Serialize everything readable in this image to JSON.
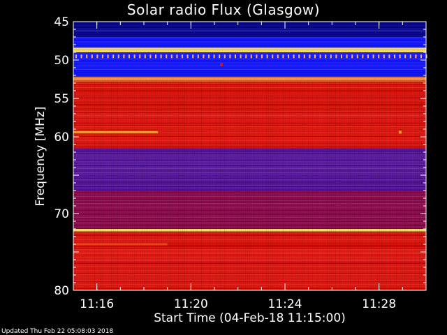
{
  "chart_data": {
    "type": "heatmap",
    "title": "Solar radio Flux (Glasgow)",
    "xlabel": "Start Time (04-Feb-18 11:15:00)",
    "ylabel": "Frequency [MHz]",
    "x_unit": "minutes past 11:00",
    "xlim": [
      15,
      30
    ],
    "x_ticks": [
      {
        "value": 16,
        "label": "11:16"
      },
      {
        "value": 20,
        "label": "11:20"
      },
      {
        "value": 24,
        "label": "11:24"
      },
      {
        "value": 28,
        "label": "11:28"
      }
    ],
    "ylim": [
      45,
      80
    ],
    "y_inverted": true,
    "y_ticks": [
      45,
      50,
      55,
      60,
      65,
      70,
      75,
      80
    ],
    "y_tick_labels": [
      "45",
      "50",
      "55",
      "60",
      "",
      "70",
      "",
      "80"
    ],
    "bands": [
      {
        "from": 45.0,
        "to": 47.0,
        "level": "dark-blue"
      },
      {
        "from": 47.0,
        "to": 48.4,
        "level": "blue"
      },
      {
        "from": 48.4,
        "to": 49.0,
        "level": "yellow-stripe"
      },
      {
        "from": 49.0,
        "to": 52.2,
        "level": "blue"
      },
      {
        "from": 52.2,
        "to": 52.8,
        "level": "orange-stripe"
      },
      {
        "from": 52.8,
        "to": 61.5,
        "level": "red"
      },
      {
        "from": 61.5,
        "to": 67.0,
        "level": "purple"
      },
      {
        "from": 67.0,
        "to": 72.0,
        "level": "red-purple"
      },
      {
        "from": 72.0,
        "to": 72.4,
        "level": "yellow-stripe"
      },
      {
        "from": 72.4,
        "to": 80.0,
        "level": "red"
      }
    ],
    "features": [
      {
        "type": "segment",
        "freq": 59.4,
        "x_from": 15.0,
        "x_to": 18.6,
        "level": "orange"
      },
      {
        "type": "dot",
        "freq": 59.4,
        "x": 28.9,
        "level": "orange"
      },
      {
        "type": "dot",
        "freq": 50.6,
        "x": 21.3,
        "level": "red"
      },
      {
        "type": "segment",
        "freq": 74.0,
        "x_from": 15.0,
        "x_to": 19.0,
        "level": "light-red"
      }
    ],
    "colors": {
      "dark-blue": "#0a0a8a",
      "blue": "#1418ee",
      "purple": "#5a1a9a",
      "red-purple": "#8a1050",
      "red": "#d81a12",
      "light-red": "#f0401a",
      "orange": "#ff9a30",
      "orange-stripe": "#ff9050",
      "yellow-stripe": "#f4d870"
    }
  },
  "footer": {
    "updated": "Updated Thu Feb 22 05:08:03 2018"
  }
}
